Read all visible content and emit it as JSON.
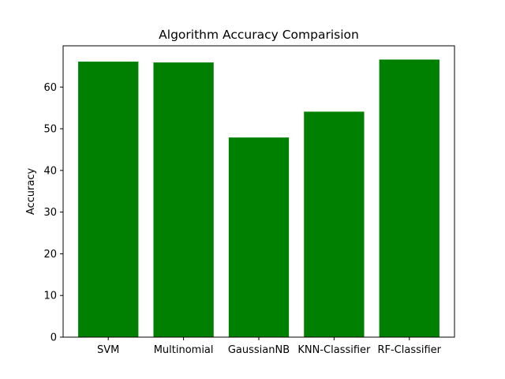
{
  "chart_data": {
    "type": "bar",
    "title": "Algorithm Accuracy Comparision",
    "xlabel": "",
    "ylabel": "Accuracy",
    "categories": [
      "SVM",
      "Multinomial",
      "GaussianNB",
      "KNN-Classifier",
      "RF-Classifier"
    ],
    "values": [
      66.1,
      65.9,
      47.9,
      54.1,
      66.6
    ],
    "ylim": [
      0,
      69.9
    ],
    "yticks": [
      0,
      10,
      20,
      30,
      40,
      50,
      60
    ],
    "bar_color": "#008000",
    "grid": false,
    "legend": "none"
  }
}
